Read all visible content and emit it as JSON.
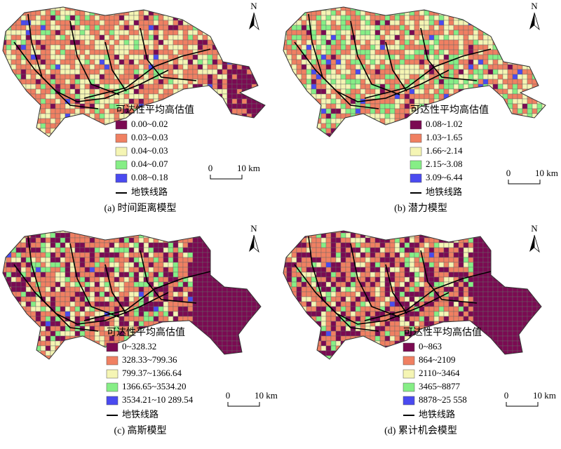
{
  "panels": [
    {
      "caption": "(a) 时间距离模型",
      "north": "N",
      "legend_title": "可达性平均高估值",
      "legend": [
        {
          "label": "0.00~0.02",
          "color": "#7b0a52"
        },
        {
          "label": "0.03~0.03",
          "color": "#f08062"
        },
        {
          "label": "0.04~0.03",
          "color": "#f5f5b4"
        },
        {
          "label": "0.04~0.07",
          "color": "#86ee86"
        },
        {
          "label": "0.08~0.18",
          "color": "#4a4af0"
        }
      ],
      "metro_label": "地铁线路",
      "scale": [
        "0",
        "10 km"
      ]
    },
    {
      "caption": "(b) 潜力模型",
      "north": "N",
      "legend_title": "可达性平均高估值",
      "legend": [
        {
          "label": "0.08~1.02",
          "color": "#7b0a52"
        },
        {
          "label": "1.03~1.65",
          "color": "#f08062"
        },
        {
          "label": "1.66~2.14",
          "color": "#f5f5b4"
        },
        {
          "label": "2.15~3.08",
          "color": "#86ee86"
        },
        {
          "label": "3.09~6.44",
          "color": "#4a4af0"
        }
      ],
      "metro_label": "地铁线路",
      "scale": [
        "0",
        "10 km"
      ]
    },
    {
      "caption": "(c) 高斯模型",
      "north": "N",
      "legend_title": "可达性平均高估值",
      "legend": [
        {
          "label": "0~328.32",
          "color": "#7b0a52"
        },
        {
          "label": "328.33~799.36",
          "color": "#f08062"
        },
        {
          "label": "799.37~1366.64",
          "color": "#f5f5b4"
        },
        {
          "label": "1366.65~3534.20",
          "color": "#86ee86"
        },
        {
          "label": "3534.21~10 289.54",
          "color": "#4a4af0"
        }
      ],
      "metro_label": "地铁线路",
      "scale": [
        "0",
        "10 km"
      ]
    },
    {
      "caption": "(d) 累计机会模型",
      "north": "N",
      "legend_title": "可达性平均高估值",
      "legend": [
        {
          "label": "0~863",
          "color": "#7b0a52"
        },
        {
          "label": "864~2109",
          "color": "#f08062"
        },
        {
          "label": "2110~3464",
          "color": "#f5f5b4"
        },
        {
          "label": "3465~8877",
          "color": "#86ee86"
        },
        {
          "label": "8878~25 558",
          "color": "#4a4af0"
        }
      ],
      "metro_label": "地铁线路",
      "scale": [
        "0",
        "10 km"
      ]
    }
  ]
}
